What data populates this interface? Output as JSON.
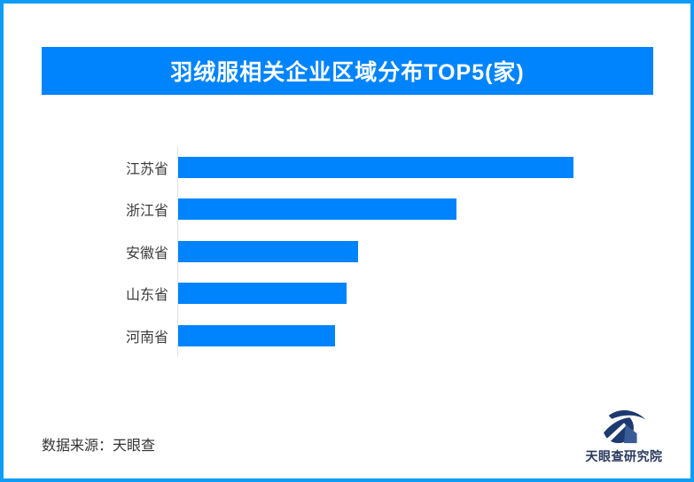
{
  "frame": {
    "border_color": "#0d9df6"
  },
  "header": {
    "title": "羽绒服相关企业区域分布TOP5(家)",
    "bg_color": "#0084fe",
    "text_color": "#ffffff"
  },
  "chart_data": {
    "type": "bar",
    "orientation": "horizontal",
    "title": "羽绒服相关企业区域分布TOP5(家)",
    "categories": [
      "江苏省",
      "浙江省",
      "安徽省",
      "山东省",
      "河南省"
    ],
    "values": [
      446,
      314,
      203,
      190,
      177
    ],
    "values_note": "no numeric axis or data labels shown; values are estimated relative bar lengths in px",
    "bar_color": "#0084fe",
    "axis_line_color": "#e4e4e4",
    "grid": false,
    "ticks": false,
    "value_labels_shown": false,
    "legend": false
  },
  "footer": {
    "source_label": "数据来源：天眼查",
    "brand_name": "天眼查研究院",
    "brand_color": "#29395e",
    "logo_navy": "#1d3a70",
    "logo_blue": "#3a5c96"
  }
}
